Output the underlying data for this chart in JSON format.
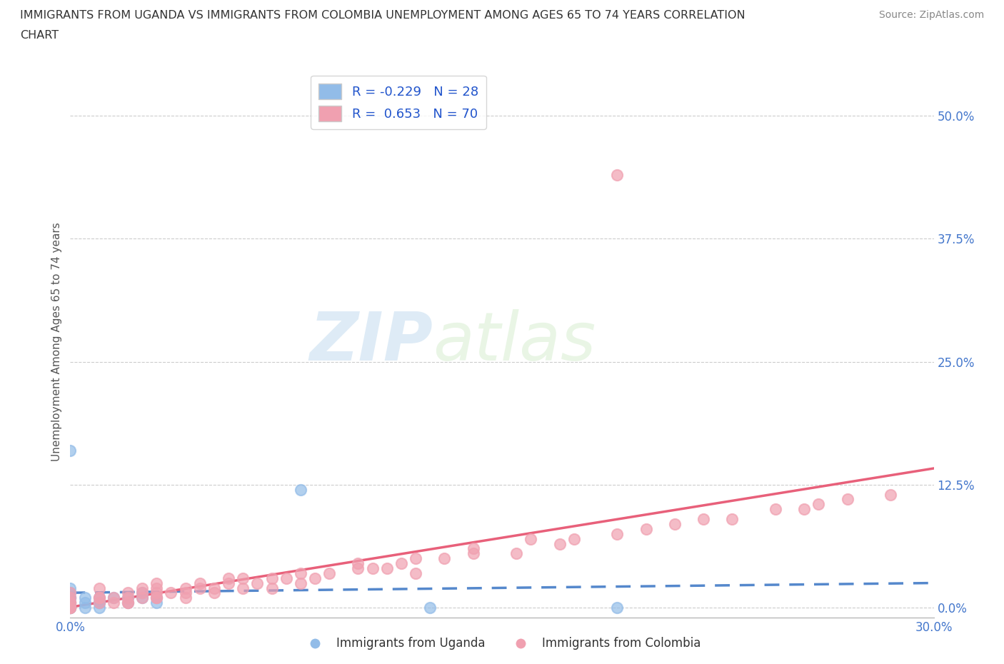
{
  "title_line1": "IMMIGRANTS FROM UGANDA VS IMMIGRANTS FROM COLOMBIA UNEMPLOYMENT AMONG AGES 65 TO 74 YEARS CORRELATION",
  "title_line2": "CHART",
  "source": "Source: ZipAtlas.com",
  "ylabel": "Unemployment Among Ages 65 to 74 years",
  "xlim": [
    0.0,
    0.3
  ],
  "ylim": [
    -0.01,
    0.55
  ],
  "yticks": [
    0.0,
    0.125,
    0.25,
    0.375,
    0.5
  ],
  "ytick_labels": [
    "0.0%",
    "12.5%",
    "25.0%",
    "37.5%",
    "50.0%"
  ],
  "xticks": [
    0.0,
    0.05,
    0.1,
    0.15,
    0.2,
    0.25,
    0.3
  ],
  "xtick_labels": [
    "0.0%",
    "",
    "",
    "",
    "",
    "",
    "30.0%"
  ],
  "uganda_color": "#92bce8",
  "colombia_color": "#f0a0b0",
  "uganda_line_color": "#5588cc",
  "colombia_line_color": "#e8607a",
  "uganda_R": -0.229,
  "uganda_N": 28,
  "colombia_R": 0.653,
  "colombia_N": 70,
  "watermark_zip": "ZIP",
  "watermark_atlas": "atlas",
  "legend_uganda": "Immigrants from Uganda",
  "legend_colombia": "Immigrants from Colombia",
  "uganda_scatter_x": [
    0.0,
    0.0,
    0.0,
    0.0,
    0.0,
    0.0,
    0.0,
    0.0,
    0.0,
    0.0,
    0.0,
    0.005,
    0.005,
    0.005,
    0.01,
    0.01,
    0.01,
    0.01,
    0.015,
    0.02,
    0.02,
    0.025,
    0.025,
    0.03,
    0.03,
    0.08,
    0.125,
    0.19
  ],
  "uganda_scatter_y": [
    0.0,
    0.0,
    0.0,
    0.0,
    0.005,
    0.005,
    0.01,
    0.01,
    0.015,
    0.02,
    0.16,
    0.0,
    0.005,
    0.01,
    0.0,
    0.005,
    0.005,
    0.01,
    0.01,
    0.005,
    0.01,
    0.01,
    0.015,
    0.005,
    0.01,
    0.12,
    0.0,
    0.0
  ],
  "colombia_scatter_x": [
    0.0,
    0.0,
    0.0,
    0.0,
    0.0,
    0.0,
    0.0,
    0.01,
    0.01,
    0.01,
    0.01,
    0.015,
    0.015,
    0.02,
    0.02,
    0.02,
    0.02,
    0.025,
    0.025,
    0.025,
    0.03,
    0.03,
    0.03,
    0.03,
    0.03,
    0.035,
    0.04,
    0.04,
    0.04,
    0.045,
    0.045,
    0.05,
    0.05,
    0.055,
    0.055,
    0.06,
    0.06,
    0.065,
    0.07,
    0.07,
    0.075,
    0.08,
    0.08,
    0.085,
    0.09,
    0.1,
    0.1,
    0.105,
    0.11,
    0.115,
    0.12,
    0.12,
    0.13,
    0.14,
    0.14,
    0.155,
    0.16,
    0.17,
    0.175,
    0.19,
    0.19,
    0.2,
    0.21,
    0.22,
    0.23,
    0.245,
    0.255,
    0.26,
    0.27,
    0.285
  ],
  "colombia_scatter_y": [
    0.0,
    0.0,
    0.0,
    0.005,
    0.005,
    0.01,
    0.015,
    0.005,
    0.01,
    0.01,
    0.02,
    0.005,
    0.01,
    0.005,
    0.005,
    0.01,
    0.015,
    0.01,
    0.015,
    0.02,
    0.01,
    0.01,
    0.015,
    0.02,
    0.025,
    0.015,
    0.01,
    0.015,
    0.02,
    0.02,
    0.025,
    0.015,
    0.02,
    0.025,
    0.03,
    0.02,
    0.03,
    0.025,
    0.02,
    0.03,
    0.03,
    0.025,
    0.035,
    0.03,
    0.035,
    0.04,
    0.045,
    0.04,
    0.04,
    0.045,
    0.035,
    0.05,
    0.05,
    0.055,
    0.06,
    0.055,
    0.07,
    0.065,
    0.07,
    0.075,
    0.44,
    0.08,
    0.085,
    0.09,
    0.09,
    0.1,
    0.1,
    0.105,
    0.11,
    0.115
  ]
}
